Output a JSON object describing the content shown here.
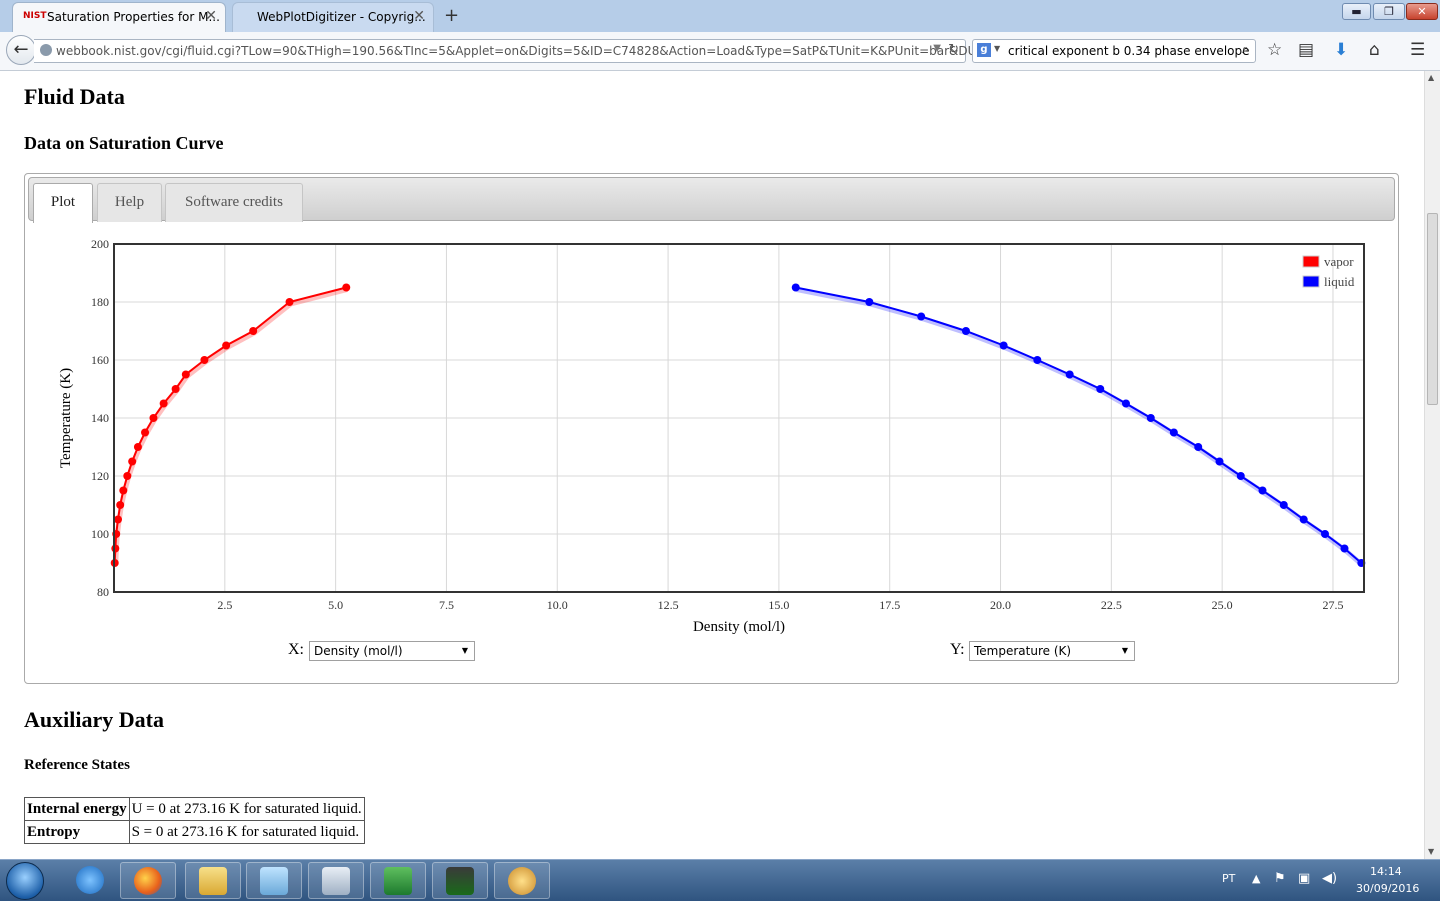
{
  "browser": {
    "tabs": [
      {
        "favicon": "NIST",
        "title": "Saturation Properties for M...",
        "close": "✕"
      },
      {
        "title": "WebPlotDigitizer - Copyrig...",
        "close": "✕"
      }
    ],
    "new_tab": "+",
    "url": "webbook.nist.gov/cgi/fluid.cgi?TLow=90&THigh=190.56&TInc=5&Applet=on&Digits=5&ID=C74828&Action=Load&Type=SatP&TUnit=K&PUnit=bar&DUnit=mo",
    "search": {
      "engine": "g",
      "query": "critical exponent b 0.34 phase envelope"
    },
    "window_buttons": {
      "minimize": "▬",
      "maximize": "❐",
      "close": "✕"
    }
  },
  "page": {
    "title": "Fluid Data",
    "section_title": "Data on Saturation Curve",
    "plot_tabs": [
      "Plot",
      "Help",
      "Software credits"
    ],
    "x_select": {
      "label": "X:",
      "value": "Density (mol/l)"
    },
    "y_select": {
      "label": "Y:",
      "value": "Temperature (K)"
    },
    "aux_title": "Auxiliary Data",
    "ref_title": "Reference States",
    "ref_table": [
      [
        "Internal energy",
        "U = 0 at 273.16 K for saturated liquid."
      ],
      [
        "Entropy",
        "S = 0 at 273.16 K for saturated liquid."
      ]
    ]
  },
  "chart_data": {
    "type": "line",
    "xlabel": "Density (mol/l)",
    "ylabel": "Temperature (K)",
    "xlim": [
      0,
      28.2
    ],
    "ylim": [
      80,
      200
    ],
    "xticks": [
      "2.5",
      "5.0",
      "7.5",
      "10.0",
      "12.5",
      "15.0",
      "17.5",
      "20.0",
      "22.5",
      "25.0",
      "27.5"
    ],
    "yticks": [
      "80",
      "100",
      "120",
      "140",
      "160",
      "180",
      "200"
    ],
    "grid": true,
    "legend_position": "top-right",
    "series": [
      {
        "name": "vapor",
        "color": "#ff0000",
        "x": [
          0.016,
          0.03,
          0.05,
          0.09,
          0.14,
          0.21,
          0.3,
          0.41,
          0.54,
          0.7,
          0.89,
          1.12,
          1.39,
          1.62,
          2.04,
          2.53,
          3.14,
          3.96,
          5.24
        ],
        "y": [
          90,
          95,
          100,
          105,
          110,
          115,
          120,
          125,
          130,
          135,
          140,
          145,
          150,
          155,
          160,
          165,
          170,
          180,
          185
        ]
      },
      {
        "name": "liquid",
        "color": "#0000ff",
        "x": [
          28.14,
          27.76,
          27.32,
          26.84,
          26.39,
          25.91,
          25.42,
          24.94,
          24.46,
          23.91,
          23.39,
          22.83,
          22.25,
          21.56,
          20.83,
          20.07,
          19.22,
          18.21,
          17.04,
          15.38
        ],
        "y": [
          90,
          95,
          100,
          105,
          110,
          115,
          120,
          125,
          130,
          135,
          140,
          145,
          150,
          155,
          160,
          165,
          170,
          175,
          180,
          185
        ]
      }
    ]
  },
  "taskbar": {
    "apps": [
      "internet-explorer",
      "firefox",
      "file-explorer",
      "notepad",
      "calculator",
      "excel",
      "pega-pontos",
      "paint"
    ],
    "language": "PT",
    "time": "14:14",
    "date": "30/09/2016"
  }
}
